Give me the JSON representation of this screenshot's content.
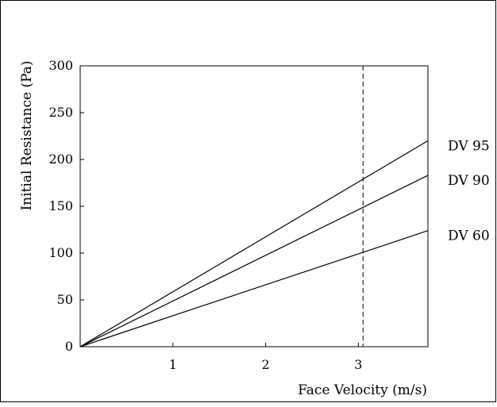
{
  "chart_data": {
    "type": "line",
    "title": "",
    "xlabel": "Face Velocity (m/s)",
    "ylabel": "Initial Resistance (Pa)",
    "xlim": [
      0,
      3.75
    ],
    "ylim": [
      0,
      300
    ],
    "x_ticks": [
      1,
      2,
      3
    ],
    "y_ticks": [
      0,
      50,
      100,
      150,
      200,
      250,
      300
    ],
    "grid": false,
    "reference_line": {
      "axis": "x",
      "value": 3.05,
      "style": "dashed"
    },
    "series": [
      {
        "name": "DV 95",
        "x": [
          0,
          3.75
        ],
        "y": [
          0,
          220
        ]
      },
      {
        "name": "DV 90",
        "x": [
          0,
          3.75
        ],
        "y": [
          0,
          183
        ]
      },
      {
        "name": "DV 60",
        "x": [
          0,
          3.75
        ],
        "y": [
          0,
          124
        ]
      }
    ]
  }
}
